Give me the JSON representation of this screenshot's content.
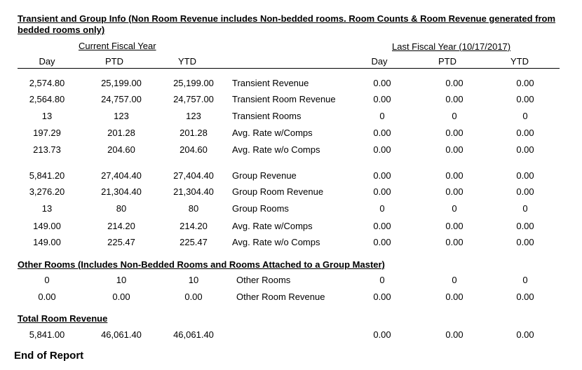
{
  "title": "Transient and Group Info (Non Room Revenue includes Non-bedded rooms.  Room Counts & Room Revenue generated from bedded rooms only)",
  "headers": {
    "current_fy": "Current Fiscal Year",
    "last_fy": "Last Fiscal Year (10/17/2017)",
    "day": "Day",
    "ptd": "PTD",
    "ytd": "YTD",
    "ly_day": "Day",
    "ly_ptd": "PTD",
    "ly_ytd": "YTD"
  },
  "transient": [
    {
      "day": "2,574.80",
      "ptd": "25,199.00",
      "ytd": "25,199.00",
      "label": "Transient Revenue",
      "ly_day": "0.00",
      "ly_ptd": "0.00",
      "ly_ytd": "0.00"
    },
    {
      "day": "2,564.80",
      "ptd": "24,757.00",
      "ytd": "24,757.00",
      "label": "Transient Room Revenue",
      "ly_day": "0.00",
      "ly_ptd": "0.00",
      "ly_ytd": "0.00"
    },
    {
      "day": "13",
      "ptd": "123",
      "ytd": "123",
      "label": "Transient Rooms",
      "ly_day": "0",
      "ly_ptd": "0",
      "ly_ytd": "0"
    },
    {
      "day": "197.29",
      "ptd": "201.28",
      "ytd": "201.28",
      "label": "Avg. Rate w/Comps",
      "ly_day": "0.00",
      "ly_ptd": "0.00",
      "ly_ytd": "0.00"
    },
    {
      "day": "213.73",
      "ptd": "204.60",
      "ytd": "204.60",
      "label": "Avg. Rate w/o Comps",
      "ly_day": "0.00",
      "ly_ptd": "0.00",
      "ly_ytd": "0.00"
    }
  ],
  "group": [
    {
      "day": "5,841.20",
      "ptd": "27,404.40",
      "ytd": "27,404.40",
      "label": "Group Revenue",
      "ly_day": "0.00",
      "ly_ptd": "0.00",
      "ly_ytd": "0.00"
    },
    {
      "day": "3,276.20",
      "ptd": "21,304.40",
      "ytd": "21,304.40",
      "label": "Group Room Revenue",
      "ly_day": "0.00",
      "ly_ptd": "0.00",
      "ly_ytd": "0.00"
    },
    {
      "day": "13",
      "ptd": "80",
      "ytd": "80",
      "label": "Group Rooms",
      "ly_day": "0",
      "ly_ptd": "0",
      "ly_ytd": "0"
    },
    {
      "day": "149.00",
      "ptd": "214.20",
      "ytd": "214.20",
      "label": "Avg. Rate w/Comps",
      "ly_day": "0.00",
      "ly_ptd": "0.00",
      "ly_ytd": "0.00"
    },
    {
      "day": "149.00",
      "ptd": "225.47",
      "ytd": "225.47",
      "label": "Avg. Rate w/o Comps",
      "ly_day": "0.00",
      "ly_ptd": "0.00",
      "ly_ytd": "0.00"
    }
  ],
  "other_title": "Other Rooms (Includes Non-Bedded Rooms and Rooms Attached to a Group Master)",
  "other": [
    {
      "day": "0",
      "ptd": "10",
      "ytd": "10",
      "label": "Other Rooms",
      "ly_day": "0",
      "ly_ptd": "0",
      "ly_ytd": "0"
    },
    {
      "day": "0.00",
      "ptd": "0.00",
      "ytd": "0.00",
      "label": "Other Room Revenue",
      "ly_day": "0.00",
      "ly_ptd": "0.00",
      "ly_ytd": "0.00"
    }
  ],
  "total_title": "Total Room Revenue",
  "total": {
    "day": "5,841.00",
    "ptd": "46,061.40",
    "ytd": "46,061.40",
    "label": "",
    "ly_day": "0.00",
    "ly_ptd": "0.00",
    "ly_ytd": "0.00"
  },
  "end": "End of Report"
}
